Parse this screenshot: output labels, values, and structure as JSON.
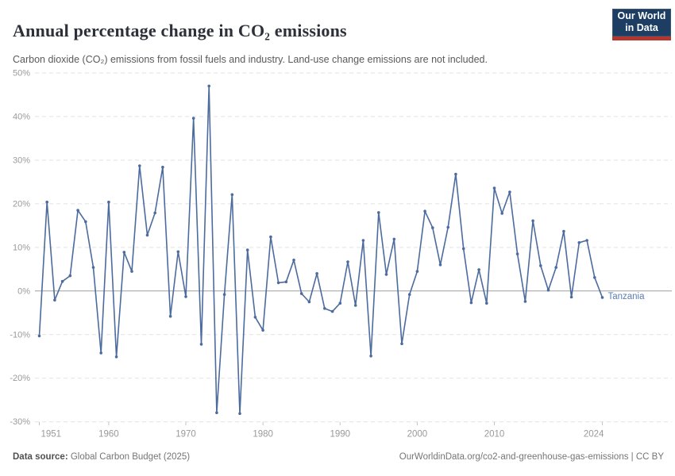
{
  "header": {
    "title": "Annual percentage change in CO₂ emissions",
    "subtitle": "Carbon dioxide (CO₂) emissions from fossil fuels and industry. Land-use change emissions are not included.",
    "logo": {
      "line1": "Our World",
      "line2": "in Data",
      "bg_color": "#1D3D63",
      "accent_color": "#B5362D"
    }
  },
  "footer": {
    "source_label": "Data source:",
    "source_value": " Global Carbon Budget (2025)",
    "link": "OurWorldinData.org/co2-and-greenhouse-gas-emissions | CC BY"
  },
  "chart_data": {
    "type": "line",
    "title": "Annual percentage change in CO₂ emissions",
    "entity": "Tanzania",
    "line_color": "#4C6B9E",
    "entity_label_color": "#5B7DB3",
    "ylim": [
      -30,
      50
    ],
    "grid": "horizontal dashed, solid zero line",
    "legend_position": "end-of-line label",
    "yticks": [
      50,
      40,
      30,
      20,
      10,
      0,
      -10,
      -20,
      -30
    ],
    "ytick_labels": [
      "50%",
      "40%",
      "30%",
      "20%",
      "10%",
      "0%",
      "-10%",
      "-20%",
      "-30%"
    ],
    "xticks": [
      1951,
      1960,
      1970,
      1980,
      1990,
      2000,
      2010,
      2024
    ],
    "xtick_labels": [
      "1951",
      "1960",
      "1970",
      "1980",
      "1990",
      "2000",
      "2010",
      "2024"
    ],
    "x": [
      1951,
      1952,
      1953,
      1954,
      1955,
      1956,
      1957,
      1958,
      1959,
      1960,
      1961,
      1962,
      1963,
      1964,
      1965,
      1966,
      1967,
      1968,
      1969,
      1970,
      1971,
      1972,
      1973,
      1974,
      1975,
      1976,
      1977,
      1978,
      1979,
      1980,
      1981,
      1982,
      1983,
      1984,
      1985,
      1986,
      1987,
      1988,
      1989,
      1990,
      1991,
      1992,
      1993,
      1994,
      1995,
      1996,
      1997,
      1998,
      1999,
      2000,
      2001,
      2002,
      2003,
      2004,
      2005,
      2006,
      2007,
      2008,
      2009,
      2010,
      2011,
      2012,
      2013,
      2014,
      2015,
      2016,
      2017,
      2018,
      2019,
      2020,
      2021,
      2022,
      2023,
      2024
    ],
    "values": [
      -10.3,
      20.4,
      -2.1,
      2.2,
      3.5,
      18.5,
      15.9,
      5.4,
      -14.2,
      20.4,
      -15.1,
      8.9,
      4.5,
      28.7,
      12.8,
      17.9,
      28.4,
      -5.8,
      9.0,
      -1.3,
      39.6,
      -12.2,
      47.0,
      -27.9,
      -0.8,
      22.1,
      -28.1,
      9.4,
      -6.0,
      -9.0,
      12.4,
      1.9,
      2.1,
      7.1,
      -0.6,
      -2.5,
      4.0,
      -4.0,
      -4.7,
      -2.8,
      6.7,
      -3.3,
      11.6,
      -14.9,
      18.0,
      3.8,
      11.9,
      -12.1,
      -0.8,
      4.5,
      18.3,
      14.5,
      6.0,
      14.6,
      26.8,
      9.7,
      -2.7,
      4.9,
      -2.8,
      23.6,
      17.8,
      22.7,
      8.5,
      -2.4,
      16.1,
      5.8,
      0.2,
      5.4,
      13.7,
      -1.4,
      11.1,
      11.6,
      3.1,
      -1.5
    ]
  }
}
